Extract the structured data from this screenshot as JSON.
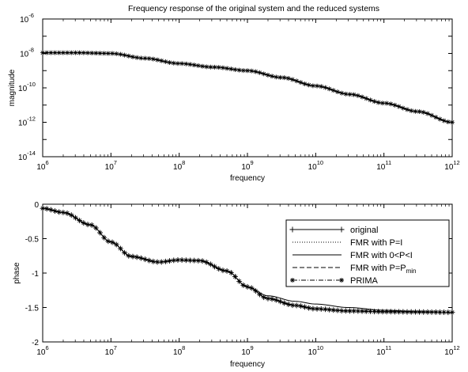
{
  "chart_data": [
    {
      "type": "line",
      "title": "Frequency response of the original system and the reduced systems",
      "xlabel": "frequency",
      "ylabel": "magnitude",
      "xscale": "log",
      "yscale": "log",
      "xlim": [
        1000000.0,
        1000000000000.0
      ],
      "ylim": [
        1e-14,
        1e-06
      ],
      "x_tick_labels": [
        {
          "base": "10",
          "exp": "6"
        },
        {
          "base": "10",
          "exp": "7"
        },
        {
          "base": "10",
          "exp": "8"
        },
        {
          "base": "10",
          "exp": "9"
        },
        {
          "base": "10",
          "exp": "10"
        },
        {
          "base": "10",
          "exp": "11"
        },
        {
          "base": "10",
          "exp": "12"
        }
      ],
      "y_tick_labels": [
        {
          "base": "10",
          "exp": "-14"
        },
        {
          "base": "10",
          "exp": "-12"
        },
        {
          "base": "10",
          "exp": "-10"
        },
        {
          "base": "10",
          "exp": "-8"
        },
        {
          "base": "10",
          "exp": "-6"
        }
      ],
      "x": [
        1000000.0,
        3160000.0,
        10000000.0,
        31600000.0,
        100000000.0,
        316000000.0,
        1000000000.0,
        3160000000.0,
        10000000000.0,
        31600000000.0,
        100000000000.0,
        316000000000.0,
        1000000000000.0
      ],
      "series": [
        {
          "values": [
            1.1e-08,
            1.1e-08,
            1e-08,
            5.2e-09,
            2.6e-09,
            1.6e-09,
            1e-09,
            4e-10,
            1.3e-10,
            4.2e-11,
            1.3e-11,
            4.2e-12,
            1e-12
          ]
        }
      ],
      "grid": false
    },
    {
      "type": "line",
      "title": "",
      "xlabel": "frequency",
      "ylabel": "phase",
      "xscale": "log",
      "xlim": [
        1000000.0,
        1000000000000.0
      ],
      "ylim": [
        -2,
        0
      ],
      "x_tick_labels": [
        {
          "base": "10",
          "exp": "6"
        },
        {
          "base": "10",
          "exp": "7"
        },
        {
          "base": "10",
          "exp": "8"
        },
        {
          "base": "10",
          "exp": "9"
        },
        {
          "base": "10",
          "exp": "10"
        },
        {
          "base": "10",
          "exp": "11"
        },
        {
          "base": "10",
          "exp": "12"
        }
      ],
      "y_tick_labels": [
        "-2",
        "-1.5",
        "-1",
        "-0.5",
        "0"
      ],
      "x": [
        1000000.0,
        2000000.0,
        5000000.0,
        10000000.0,
        20000000.0,
        50000000.0,
        100000000.0,
        200000000.0,
        500000000.0,
        1000000000.0,
        2000000000.0,
        5000000000.0,
        10000000000.0,
        30000000000.0,
        100000000000.0,
        300000000000.0,
        1000000000000.0
      ],
      "series": [
        {
          "name": "original",
          "values": [
            -0.06,
            -0.12,
            -0.3,
            -0.55,
            -0.76,
            -0.84,
            -0.81,
            -0.82,
            -0.97,
            -1.2,
            -1.37,
            -1.47,
            -1.52,
            -1.55,
            -1.56,
            -1.565,
            -1.57
          ]
        },
        {
          "name": "FMR with P=I",
          "values": [
            -0.06,
            -0.12,
            -0.3,
            -0.55,
            -0.76,
            -0.84,
            -0.81,
            -0.82,
            -0.97,
            -1.2,
            -1.37,
            -1.47,
            -1.52,
            -1.55,
            -1.56,
            -1.565,
            -1.57
          ]
        },
        {
          "name": "FMR with 0<P<I",
          "values": [
            -0.06,
            -0.12,
            -0.3,
            -0.55,
            -0.76,
            -0.84,
            -0.81,
            -0.82,
            -0.97,
            -1.2,
            -1.33,
            -1.41,
            -1.45,
            -1.5,
            -1.54,
            -1.56,
            -1.57
          ]
        },
        {
          "name": "FMR with P=P_min",
          "values": [
            -0.06,
            -0.12,
            -0.3,
            -0.55,
            -0.76,
            -0.84,
            -0.81,
            -0.82,
            -0.97,
            -1.2,
            -1.37,
            -1.47,
            -1.52,
            -1.55,
            -1.56,
            -1.565,
            -1.57
          ]
        },
        {
          "name": "PRIMA",
          "values": [
            -0.06,
            -0.12,
            -0.3,
            -0.55,
            -0.76,
            -0.84,
            -0.81,
            -0.82,
            -0.97,
            -1.2,
            -1.37,
            -1.47,
            -1.52,
            -1.55,
            -1.56,
            -1.565,
            -1.57
          ]
        }
      ],
      "legend": {
        "placement": "upper-right",
        "entries": [
          {
            "label": "original",
            "style": "solid-plus"
          },
          {
            "label": "FMR with P=I",
            "style": "dotted"
          },
          {
            "label": "FMR with 0<P<I",
            "style": "solid"
          },
          {
            "label": "FMR with P=P",
            "sub": "min",
            "style": "dashed"
          },
          {
            "label": "PRIMA",
            "style": "dashdot-star"
          }
        ]
      },
      "grid": false
    }
  ]
}
